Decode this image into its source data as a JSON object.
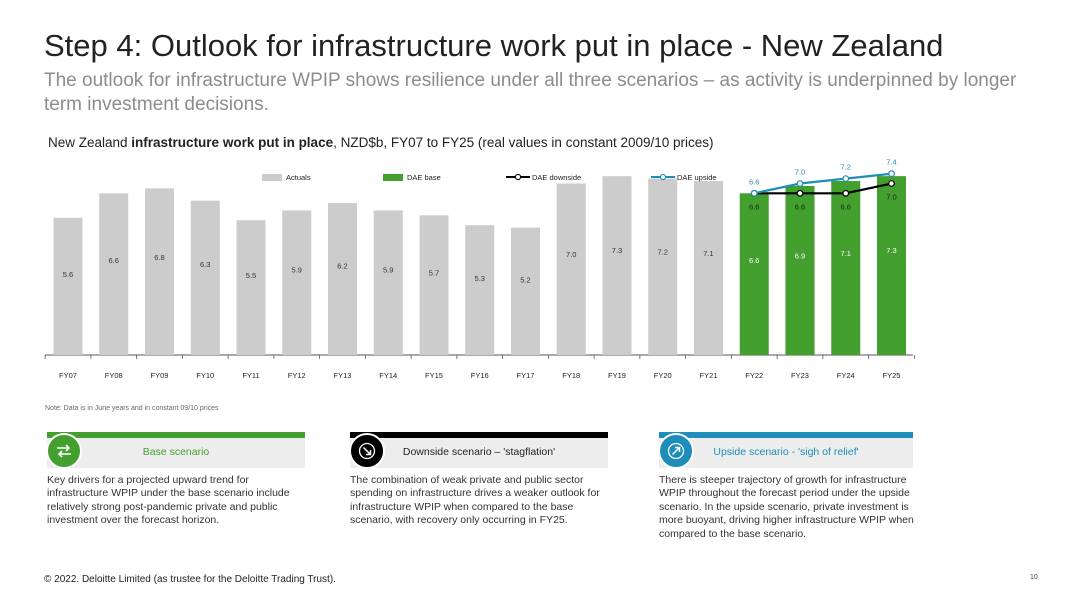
{
  "header": {
    "title": "Step 4: Outlook for infrastructure work put in place - New Zealand",
    "subtitle": "The outlook for infrastructure WPIP shows resilience under all three scenarios – as activity is underpinned by longer term investment decisions."
  },
  "chart_header": {
    "prefix": "New Zealand ",
    "bold": "infrastructure work put in place",
    "suffix": ", NZD$b, FY07 to FY25 (real values in constant 2009/10 prices)"
  },
  "note": "Note: Data is in June years and in constant 09/10 prices",
  "colors": {
    "actuals": "#cccccc",
    "base": "#43a02e",
    "downside": "#000000",
    "upside": "#1e8dba",
    "base_bar": "#43a02e",
    "downside_bar": "#000000",
    "upside_bar": "#1e8dba"
  },
  "chart_data": {
    "type": "bar",
    "categories": [
      "FY07",
      "FY08",
      "FY09",
      "FY10",
      "FY11",
      "FY12",
      "FY13",
      "FY14",
      "FY15",
      "FY16",
      "FY17",
      "FY18",
      "FY19",
      "FY20",
      "FY21",
      "FY22",
      "FY23",
      "FY24",
      "FY25"
    ],
    "series": [
      {
        "name": "Actuals",
        "type": "bar",
        "values": [
          5.6,
          6.6,
          6.8,
          6.3,
          5.5,
          5.9,
          6.2,
          5.9,
          5.7,
          5.3,
          5.2,
          7.0,
          7.3,
          7.2,
          7.1,
          null,
          null,
          null,
          null
        ]
      },
      {
        "name": "DAE base",
        "type": "bar",
        "values": [
          null,
          null,
          null,
          null,
          null,
          null,
          null,
          null,
          null,
          null,
          null,
          null,
          null,
          null,
          null,
          6.6,
          6.9,
          7.1,
          7.3
        ]
      },
      {
        "name": "DAE downside",
        "type": "line",
        "values": [
          null,
          null,
          null,
          null,
          null,
          null,
          null,
          null,
          null,
          null,
          null,
          null,
          null,
          null,
          null,
          6.6,
          6.6,
          6.6,
          7.0
        ]
      },
      {
        "name": "DAE upside",
        "type": "line",
        "values": [
          null,
          null,
          null,
          null,
          null,
          null,
          null,
          null,
          null,
          null,
          null,
          null,
          null,
          null,
          null,
          6.6,
          7.0,
          7.2,
          7.4
        ]
      }
    ],
    "ylim": [
      0,
      8.5
    ],
    "grid": false,
    "legend": "top"
  },
  "cards": [
    {
      "heading": "Base scenario",
      "icon": "swap-arrows-icon",
      "color": "#43a02e",
      "text": "Key drivers for a projected upward trend for infrastructure WPIP under the base scenario include relatively strong post-pandemic private and public investment over the forecast horizon."
    },
    {
      "heading": "Downside scenario – 'stagflation'",
      "icon": "arrow-down-right-icon",
      "color": "#000000",
      "text": "The combination of weak private and public sector spending on infrastructure drives a weaker outlook for infrastructure WPIP when compared to the base scenario, with recovery only occurring in FY25."
    },
    {
      "heading": "Upside scenario - 'sigh of relief'",
      "icon": "arrow-up-right-icon",
      "color": "#1e8dba",
      "text": "There is steeper trajectory of growth for infrastructure WPIP throughout the forecast period under the upside scenario. In the upside scenario, private investment is more buoyant, driving higher infrastructure WPIP when compared to the base scenario."
    }
  ],
  "footer": "© 2022. Deloitte Limited (as trustee for the Deloitte Trading Trust).",
  "page_number": "10"
}
